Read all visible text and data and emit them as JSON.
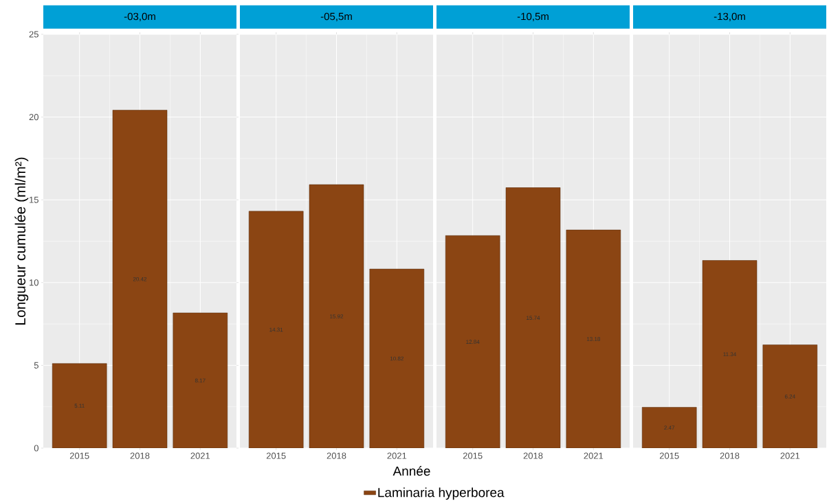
{
  "chart_data": [
    {
      "type": "bar",
      "title": "-03,0m",
      "ylabel": "Longueur cumulée (ml/m²)",
      "categories": [
        "2015",
        "2018",
        "2021"
      ],
      "series": [
        {
          "name": "Laminaria hyperborea",
          "color": "#8b4513",
          "values": [
            5.11,
            20.42,
            8.17
          ]
        }
      ],
      "ylim": [
        0,
        25
      ],
      "yticks": [
        0,
        5,
        10,
        15,
        20,
        25
      ],
      "grid": true,
      "legend": "bottom",
      "data_labels": true
    },
    {
      "type": "bar",
      "title": "-05,5m",
      "xlabel": "Année",
      "categories": [
        "2015",
        "2018",
        "2021"
      ],
      "series": [
        {
          "color": "#8b4513",
          "values": [
            14.31,
            15.92,
            10.82
          ]
        }
      ],
      "ylim": [
        0,
        25
      ],
      "yticks": [
        0,
        5,
        10,
        15,
        20,
        25
      ],
      "grid": true,
      "tick_labels": "x",
      "data_labels": true
    },
    {
      "type": "bar",
      "title": "-10,5m",
      "categories": [
        "2015",
        "2018",
        "2021"
      ],
      "series": [
        {
          "color": "#8b4513",
          "values": [
            12.84,
            15.74,
            13.18
          ]
        }
      ],
      "ylim": [
        0,
        25
      ],
      "yticks": [
        0,
        5,
        10,
        15,
        20,
        25
      ],
      "grid": true,
      "tick_labels": "x",
      "data_labels": true
    },
    {
      "type": "bar",
      "title": "-13,0m",
      "categories": [
        "2015",
        "2018",
        "2021"
      ],
      "series": [
        {
          "color": "#8b4513",
          "values": [
            2.47,
            11.34,
            6.24
          ]
        }
      ],
      "ylim": [
        0,
        25
      ],
      "yticks": [
        0,
        5,
        10,
        15,
        20,
        25
      ],
      "grid": true,
      "tick_labels": "x",
      "data_labels": true
    }
  ]
}
